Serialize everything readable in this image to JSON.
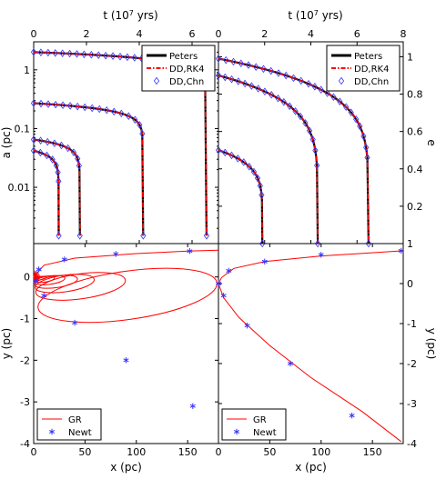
{
  "chart_data": [
    {
      "type": "line",
      "panel": "top-left",
      "xlabel_top": "t (10^7 yrs)",
      "ylabel": "a (pc)",
      "x_ticks": [
        "0",
        "2",
        "4",
        "6"
      ],
      "xlim": [
        0,
        7.0
      ],
      "yscale": "log",
      "ylim": [
        0.0011,
        3.0
      ],
      "y_ticks": [
        "1",
        "0.1",
        "0.01"
      ],
      "y_tick_values": [
        1,
        0.1,
        0.01
      ],
      "legend": {
        "placement": "top-right",
        "entries": [
          "Peters",
          "DD,RK4",
          "DD,Chn"
        ]
      },
      "series": [
        {
          "name": "Peters",
          "color": "#000000"
        },
        {
          "name": "DD,RK4",
          "color": "#ff0000"
        },
        {
          "name": "DD,Chn",
          "color": "#3333ff"
        }
      ],
      "curves": [
        {
          "a0": 2.0,
          "tf": 6.55
        },
        {
          "a0": 0.27,
          "tf": 4.15
        },
        {
          "a0": 0.065,
          "tf": 1.75
        },
        {
          "a0": 0.042,
          "tf": 0.95
        }
      ]
    },
    {
      "type": "line",
      "panel": "top-right",
      "xlabel_top": "t (10^7 yrs)",
      "ylabel": "e",
      "x_ticks": [
        "0",
        "2",
        "4",
        "6",
        "8"
      ],
      "xlim": [
        0,
        8
      ],
      "ylim": [
        0,
        1.08
      ],
      "y_ticks": [
        "1",
        "0.8",
        "0.6",
        "0.4",
        "0.2"
      ],
      "y_tick_values": [
        1,
        0.8,
        0.6,
        0.4,
        0.2
      ],
      "legend": {
        "placement": "top-right",
        "entries": [
          "Peters",
          "DD,RK4",
          "DD,Chn"
        ]
      },
      "curves": [
        {
          "e0": 0.99,
          "tf": 6.5
        },
        {
          "e0": 0.9,
          "tf": 4.3
        },
        {
          "e0": 0.5,
          "tf": 1.9
        }
      ]
    },
    {
      "type": "scatter",
      "panel": "bottom-left",
      "xlabel": "x (pc)",
      "ylabel": "y (pc)",
      "x_ticks": [
        "0",
        "50",
        "100",
        "150"
      ],
      "xlim": [
        0,
        180
      ],
      "ylim": [
        -4,
        0.8
      ],
      "y_ticks": [
        "0",
        "-1",
        "-2",
        "-3",
        "-4"
      ],
      "y_tick_values": [
        0,
        -1,
        -2,
        -3,
        -4
      ],
      "legend": {
        "placement": "bottom-left",
        "entries": [
          "GR",
          "Newt"
        ]
      },
      "newt_points": [
        [
          152,
          0.62
        ],
        [
          80,
          0.55
        ],
        [
          30,
          0.42
        ],
        [
          5,
          0.18
        ],
        [
          2,
          -0.1
        ],
        [
          10,
          -0.45
        ],
        [
          40,
          -1.1
        ],
        [
          90,
          -2.0
        ],
        [
          155,
          -3.1
        ]
      ],
      "gr_ellipses": [
        {
          "cx": 88,
          "cy": -0.75,
          "rx": 88,
          "ry": 0.58
        },
        {
          "cx": 44,
          "cy": -0.38,
          "rx": 44,
          "ry": 0.3
        },
        {
          "cx": 29,
          "cy": -0.26,
          "rx": 29,
          "ry": 0.2
        },
        {
          "cx": 21,
          "cy": -0.19,
          "rx": 21,
          "ry": 0.14
        },
        {
          "cx": 15,
          "cy": -0.13,
          "rx": 15,
          "ry": 0.1
        },
        {
          "cx": 10,
          "cy": -0.09,
          "rx": 10,
          "ry": 0.07
        },
        {
          "cx": 6,
          "cy": -0.05,
          "rx": 6,
          "ry": 0.04
        }
      ],
      "gr_top_branch": [
        [
          0,
          0.0
        ],
        [
          10,
          0.28
        ],
        [
          40,
          0.45
        ],
        [
          100,
          0.56
        ],
        [
          150,
          0.62
        ],
        [
          180,
          0.64
        ]
      ]
    },
    {
      "type": "scatter",
      "panel": "bottom-right",
      "xlabel": "x (pc)",
      "ylabel": "y (pc)",
      "x_ticks": [
        "0",
        "50",
        "100",
        "150"
      ],
      "xlim": [
        0,
        180
      ],
      "ylim": [
        -4,
        1.0
      ],
      "y_ticks": [
        "1",
        "0",
        "-1",
        "-2",
        "-3",
        "-4"
      ],
      "y_tick_values": [
        1,
        0,
        -1,
        -2,
        -3,
        -4
      ],
      "legend": {
        "placement": "bottom-left",
        "entries": [
          "GR",
          "Newt"
        ]
      },
      "newt_points": [
        [
          178,
          0.82
        ],
        [
          100,
          0.72
        ],
        [
          45,
          0.55
        ],
        [
          10,
          0.32
        ],
        [
          0,
          0.0
        ],
        [
          5,
          -0.3
        ],
        [
          28,
          -1.05
        ],
        [
          70,
          -2.0
        ],
        [
          130,
          -3.3
        ]
      ],
      "gr_curve": [
        [
          180,
          0.82
        ],
        [
          100,
          0.69
        ],
        [
          45,
          0.55
        ],
        [
          15,
          0.38
        ],
        [
          3,
          0.15
        ],
        [
          0,
          0.0
        ],
        [
          5,
          -0.35
        ],
        [
          20,
          -0.85
        ],
        [
          50,
          -1.55
        ],
        [
          90,
          -2.35
        ],
        [
          140,
          -3.2
        ],
        [
          178,
          -3.95
        ]
      ]
    }
  ]
}
